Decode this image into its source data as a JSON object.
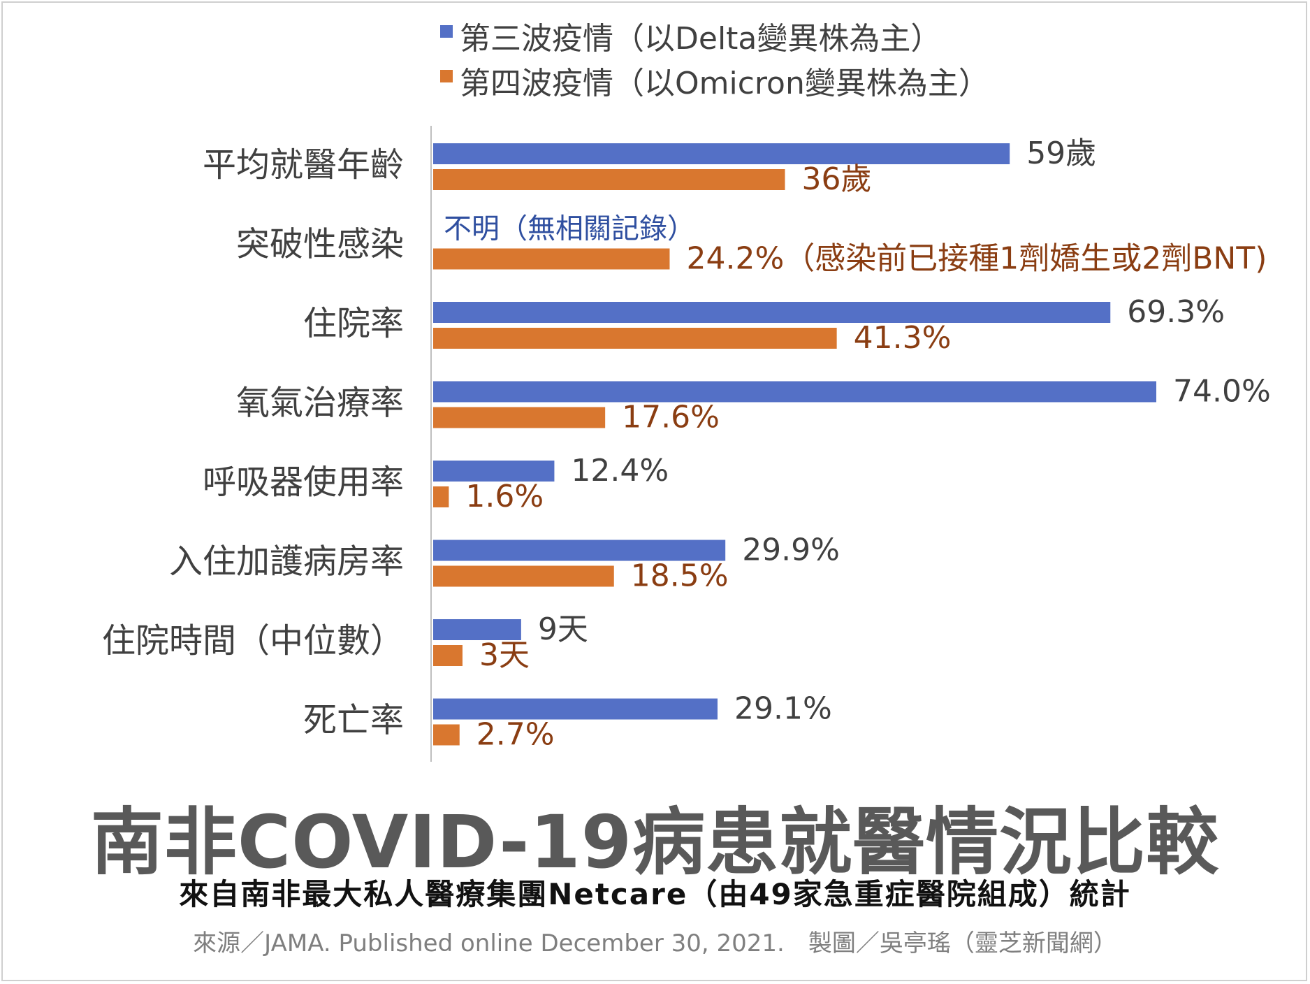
{
  "chart_data": {
    "type": "bar",
    "orientation": "horizontal",
    "title": "南非COVID-19病患就醫情況比較",
    "subtitle": "來自南非最大私人醫療集團Netcare（由49家急重症醫院組成）統計",
    "source": "來源／JAMA. Published online December 30, 2021.　製圖／吳亭瑤（靈芝新聞網）",
    "legend_position": "top",
    "grid": false,
    "categories": [
      "平均就醫年齡",
      "突破性感染",
      "住院率",
      "氧氣治療率",
      "呼吸器使用率",
      "入住加護病房率",
      "住院時間（中位數）",
      "死亡率"
    ],
    "series": [
      {
        "name": "第三波疫情（以Delta變異株為主）",
        "color": "#5470c6",
        "values": [
          59,
          null,
          69.3,
          74.0,
          12.4,
          29.9,
          9,
          29.1
        ],
        "labels": [
          "59歲",
          "不明（無相關記錄）",
          "69.3%",
          "74.0%",
          "12.4%",
          "29.9%",
          "9天",
          "29.1%"
        ]
      },
      {
        "name": "第四波疫情（以Omicron變異株為主）",
        "color": "#d9772f",
        "values": [
          36,
          24.2,
          41.3,
          17.6,
          1.6,
          18.5,
          3,
          2.7
        ],
        "labels": [
          "36歲",
          "24.2%（感染前已接種1劑嬌生或2劑BNT)",
          "41.3%",
          "17.6%",
          "1.6%",
          "18.5%",
          "3天",
          "2.7%"
        ]
      }
    ]
  }
}
